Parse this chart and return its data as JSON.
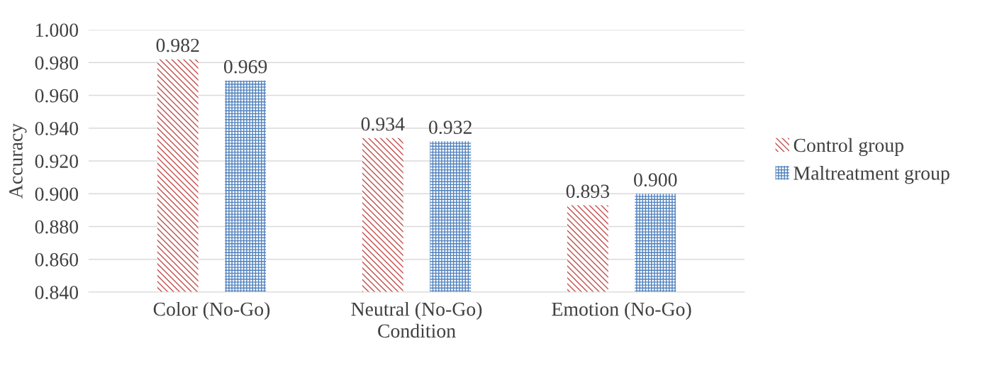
{
  "chart_data": {
    "type": "bar",
    "xlabel": "Condition",
    "ylabel": "Accuracy",
    "categories": [
      "Color (No-Go)",
      "Neutral (No-Go)",
      "Emotion (No-Go)"
    ],
    "series": [
      {
        "name": "Control group",
        "color": "#c0504d",
        "values": [
          0.982,
          0.934,
          0.893
        ],
        "value_labels": [
          "0.982",
          "0.934",
          "0.893"
        ]
      },
      {
        "name": "Maltreatment group",
        "color": "#4f81bd",
        "values": [
          0.969,
          0.932,
          0.9
        ],
        "value_labels": [
          "0.969",
          "0.932",
          "0.900"
        ]
      }
    ],
    "ylim": [
      0.84,
      1.0
    ],
    "yticks": [
      {
        "value": 0.84,
        "label": "0.840"
      },
      {
        "value": 0.86,
        "label": "0.860"
      },
      {
        "value": 0.88,
        "label": "0.880"
      },
      {
        "value": 0.9,
        "label": "0.900"
      },
      {
        "value": 0.92,
        "label": "0.920"
      },
      {
        "value": 0.94,
        "label": "0.940"
      },
      {
        "value": 0.96,
        "label": "0.960"
      },
      {
        "value": 0.98,
        "label": "0.980"
      },
      {
        "value": 1.0,
        "label": "1.000"
      }
    ],
    "grid": "y",
    "legend": "right"
  }
}
